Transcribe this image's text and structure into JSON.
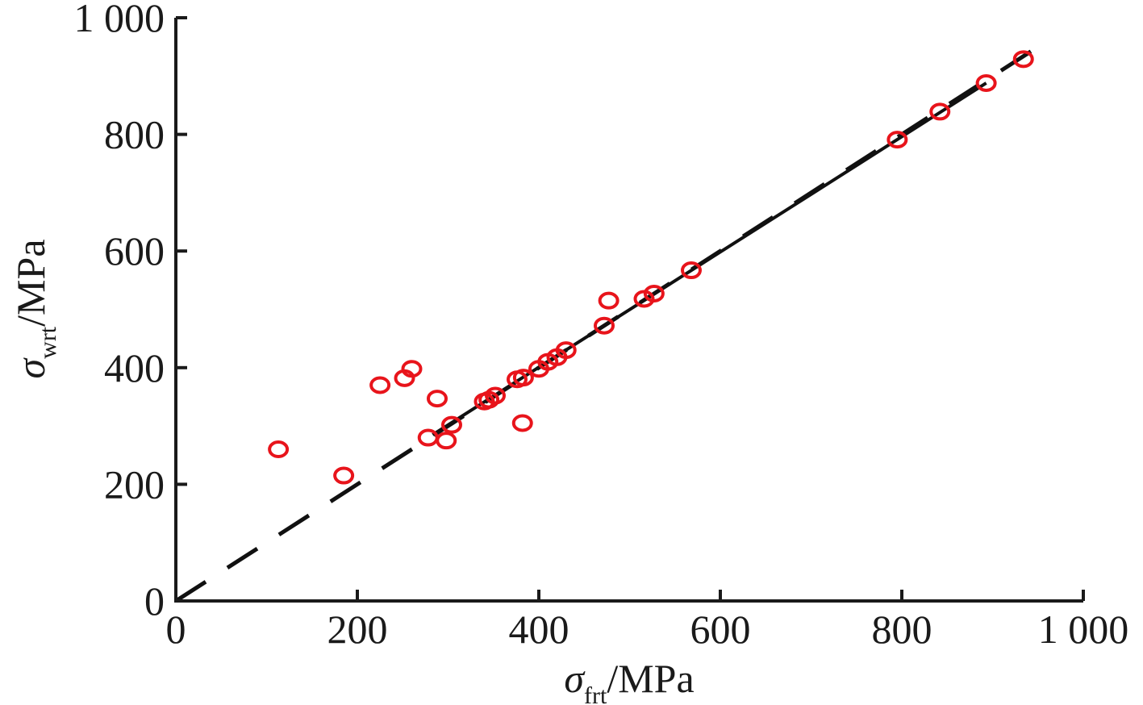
{
  "chart_data": {
    "type": "scatter",
    "title": "",
    "xlabel": {
      "symbol": "σ",
      "sub": "frt",
      "unit": "/MPa"
    },
    "ylabel": {
      "symbol": "σ",
      "sub": "wrt",
      "unit": "/MPa"
    },
    "xlim": [
      0,
      1000
    ],
    "ylim": [
      0,
      1000
    ],
    "x_ticks": [
      0,
      200,
      400,
      600,
      800,
      1000
    ],
    "y_ticks": [
      0,
      200,
      400,
      600,
      800,
      1000
    ],
    "x_tick_labels": [
      "0",
      "200",
      "400",
      "600",
      "800",
      "1 000"
    ],
    "y_tick_labels": [
      "0",
      "200",
      "400",
      "600",
      "800",
      "1 000"
    ],
    "grid": false,
    "marker_color": "#e8141b",
    "line_color": "#111111",
    "series": [
      {
        "marker": "open-circle",
        "points": [
          {
            "x": 113,
            "y": 260
          },
          {
            "x": 185,
            "y": 215
          },
          {
            "x": 225,
            "y": 370
          },
          {
            "x": 252,
            "y": 382
          },
          {
            "x": 260,
            "y": 398
          },
          {
            "x": 278,
            "y": 280
          },
          {
            "x": 288,
            "y": 347
          },
          {
            "x": 298,
            "y": 275
          },
          {
            "x": 304,
            "y": 302
          },
          {
            "x": 340,
            "y": 342
          },
          {
            "x": 345,
            "y": 345
          },
          {
            "x": 352,
            "y": 352
          },
          {
            "x": 376,
            "y": 380
          },
          {
            "x": 382,
            "y": 305
          },
          {
            "x": 383,
            "y": 383
          },
          {
            "x": 400,
            "y": 398
          },
          {
            "x": 410,
            "y": 410
          },
          {
            "x": 420,
            "y": 418
          },
          {
            "x": 430,
            "y": 430
          },
          {
            "x": 472,
            "y": 472
          },
          {
            "x": 477,
            "y": 515
          },
          {
            "x": 516,
            "y": 518
          },
          {
            "x": 527,
            "y": 527
          },
          {
            "x": 568,
            "y": 567
          },
          {
            "x": 795,
            "y": 791
          },
          {
            "x": 842,
            "y": 839
          },
          {
            "x": 893,
            "y": 888
          },
          {
            "x": 934,
            "y": 929
          }
        ]
      }
    ],
    "reference_line": {
      "style": "dashed",
      "from": {
        "x": 0,
        "y": 0
      },
      "to": {
        "x": 960,
        "y": 960
      }
    },
    "fit_line": {
      "style": "solid",
      "from": {
        "x": 283,
        "y": 285
      },
      "to": {
        "x": 893,
        "y": 888
      }
    }
  }
}
